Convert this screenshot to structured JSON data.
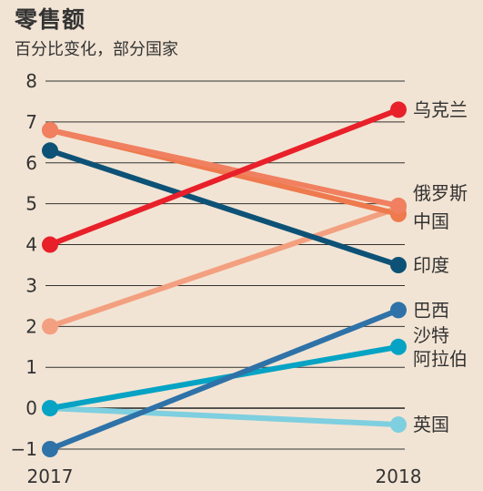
{
  "chart_data": {
    "type": "line",
    "title": "零售额",
    "subtitle": "百分比变化，部分国家",
    "x": [
      "2017",
      "2018"
    ],
    "ylim": [
      -1,
      8
    ],
    "yticks": [
      -1,
      0,
      1,
      2,
      3,
      4,
      5,
      6,
      7,
      8
    ],
    "ytick_labels": [
      "−1",
      "0",
      "1",
      "2",
      "3",
      "4",
      "5",
      "6",
      "7",
      "8"
    ],
    "grid": true,
    "series": [
      {
        "name": "乌克兰",
        "values": [
          4.0,
          7.3
        ],
        "color": "#e8202a",
        "label_lines": [
          "乌克兰"
        ]
      },
      {
        "name": "俄罗斯",
        "values": [
          6.8,
          4.95
        ],
        "color": "#f08060",
        "label_lines": [
          "俄罗斯"
        ]
      },
      {
        "name": "中国",
        "values": [
          6.8,
          4.75
        ],
        "color": "#ee7a4e",
        "label_lines": [
          "中国"
        ]
      },
      {
        "name": "印度",
        "values": [
          6.3,
          3.5
        ],
        "color": "#0d5276",
        "label_lines": [
          "印度"
        ]
      },
      {
        "name": "巴西",
        "values": [
          -1.0,
          2.4
        ],
        "color": "#2e72a8",
        "label_lines": [
          "巴西"
        ]
      },
      {
        "name": "沙特阿拉伯",
        "values": [
          0.0,
          1.5
        ],
        "color": "#06a3c4",
        "label_lines": [
          "沙特",
          "阿拉伯"
        ]
      },
      {
        "name": "英国",
        "values": [
          0.0,
          -0.4
        ],
        "color": "#7ecfdf",
        "label_lines": [
          "英国"
        ]
      },
      {
        "name": "",
        "values": [
          2.0,
          4.9
        ],
        "color": "#f3a080",
        "label_lines": []
      }
    ]
  }
}
